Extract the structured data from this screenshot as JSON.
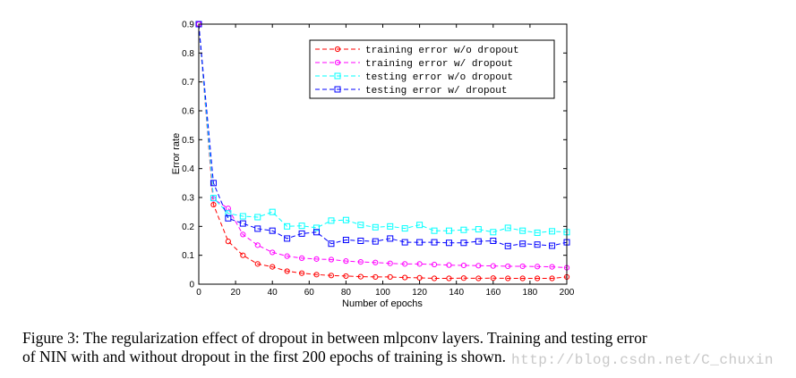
{
  "chart_data": {
    "type": "line",
    "title": "",
    "xlabel": "Number of epochs",
    "ylabel": "Error rate",
    "xlim": [
      0,
      200
    ],
    "ylim": [
      0,
      0.9
    ],
    "xticks": [
      0,
      20,
      40,
      60,
      80,
      100,
      120,
      140,
      160,
      180,
      200
    ],
    "yticks": [
      0,
      0.1,
      0.2,
      0.3,
      0.4,
      0.5,
      0.6,
      0.7,
      0.8,
      0.9
    ],
    "xtick_labels": [
      "0",
      "20",
      "40",
      "60",
      "80",
      "100",
      "120",
      "140",
      "160",
      "180",
      "200"
    ],
    "ytick_labels": [
      "0",
      "0.1",
      "0.2",
      "0.3",
      "0.4",
      "0.5",
      "0.6",
      "0.7",
      "0.8",
      "0.9"
    ],
    "grid": false,
    "legend_position": "top-right",
    "x": [
      0,
      8,
      16,
      24,
      32,
      40,
      48,
      56,
      64,
      72,
      80,
      88,
      96,
      104,
      112,
      120,
      128,
      136,
      144,
      152,
      160,
      168,
      176,
      184,
      192,
      200
    ],
    "series": [
      {
        "name": "training error w/o dropout",
        "color": "#ff0000",
        "marker": "circle",
        "values": [
          0.9,
          0.275,
          0.148,
          0.1,
          0.07,
          0.06,
          0.045,
          0.038,
          0.033,
          0.03,
          0.028,
          0.026,
          0.025,
          0.025,
          0.023,
          0.022,
          0.02,
          0.02,
          0.021,
          0.02,
          0.021,
          0.02,
          0.02,
          0.02,
          0.02,
          0.025
        ]
      },
      {
        "name": "training error w/ dropout",
        "color": "#ff00ff",
        "marker": "circle",
        "values": [
          0.9,
          0.295,
          0.262,
          0.172,
          0.135,
          0.11,
          0.097,
          0.09,
          0.087,
          0.085,
          0.08,
          0.077,
          0.075,
          0.072,
          0.07,
          0.07,
          0.068,
          0.066,
          0.065,
          0.064,
          0.063,
          0.062,
          0.062,
          0.061,
          0.06,
          0.057
        ]
      },
      {
        "name": "testing error w/o dropout",
        "color": "#00ffff",
        "marker": "square",
        "values": [
          0.9,
          0.298,
          0.245,
          0.235,
          0.232,
          0.25,
          0.2,
          0.202,
          0.195,
          0.22,
          0.222,
          0.205,
          0.197,
          0.2,
          0.193,
          0.205,
          0.185,
          0.185,
          0.188,
          0.19,
          0.18,
          0.195,
          0.185,
          0.178,
          0.183,
          0.18
        ]
      },
      {
        "name": "testing error w/ dropout",
        "color": "#0000ff",
        "marker": "square",
        "values": [
          0.9,
          0.35,
          0.228,
          0.21,
          0.192,
          0.185,
          0.158,
          0.175,
          0.18,
          0.14,
          0.153,
          0.15,
          0.148,
          0.158,
          0.145,
          0.145,
          0.145,
          0.143,
          0.143,
          0.148,
          0.15,
          0.132,
          0.14,
          0.137,
          0.133,
          0.145
        ]
      }
    ]
  },
  "caption": {
    "line1": "Figure 3: The regularization effect of dropout in between mlpconv layers. Training and testing error",
    "line2": "of NIN with and without dropout in the first 200 epochs of training is shown."
  },
  "watermark": "http://blog.csdn.net/C_chuxin"
}
